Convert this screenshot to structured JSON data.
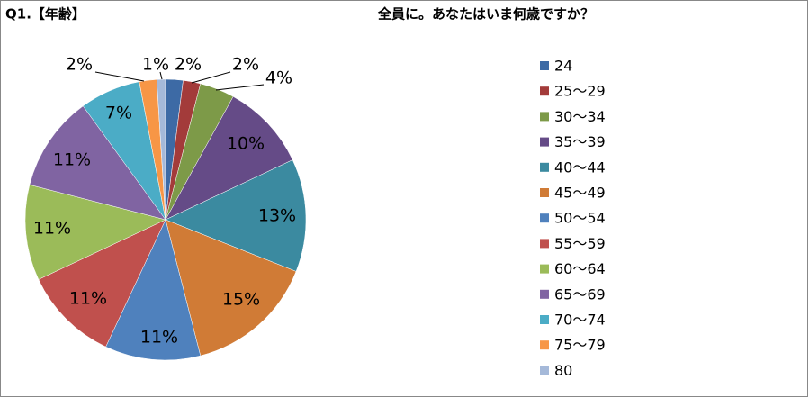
{
  "chart_data": {
    "type": "pie",
    "page_title": "Q1.【年齢】",
    "title": "全員に。あなたはいま何歳ですか？",
    "categories": [
      "24",
      "25～29",
      "30～34",
      "35～39",
      "40～44",
      "45～49",
      "50～54",
      "55～59",
      "60～64",
      "65～69",
      "70～74",
      "75～79",
      "80"
    ],
    "values": [
      2,
      2,
      4,
      10,
      13,
      15,
      11,
      11,
      11,
      11,
      7,
      2,
      1
    ],
    "value_labels": [
      "2%",
      "2%",
      "4%",
      "10%",
      "13%",
      "15%",
      "11%",
      "11%",
      "11%",
      "11%",
      "7%",
      "2%",
      "1%"
    ],
    "colors": [
      "#3d6aa5",
      "#a33b3a",
      "#7d9a48",
      "#654b87",
      "#3b8aa0",
      "#d07b36",
      "#4f81bd",
      "#c0504d",
      "#9bbb59",
      "#8064a2",
      "#4bacc6",
      "#f79646",
      "#a5b9d9"
    ],
    "legend": "right"
  }
}
